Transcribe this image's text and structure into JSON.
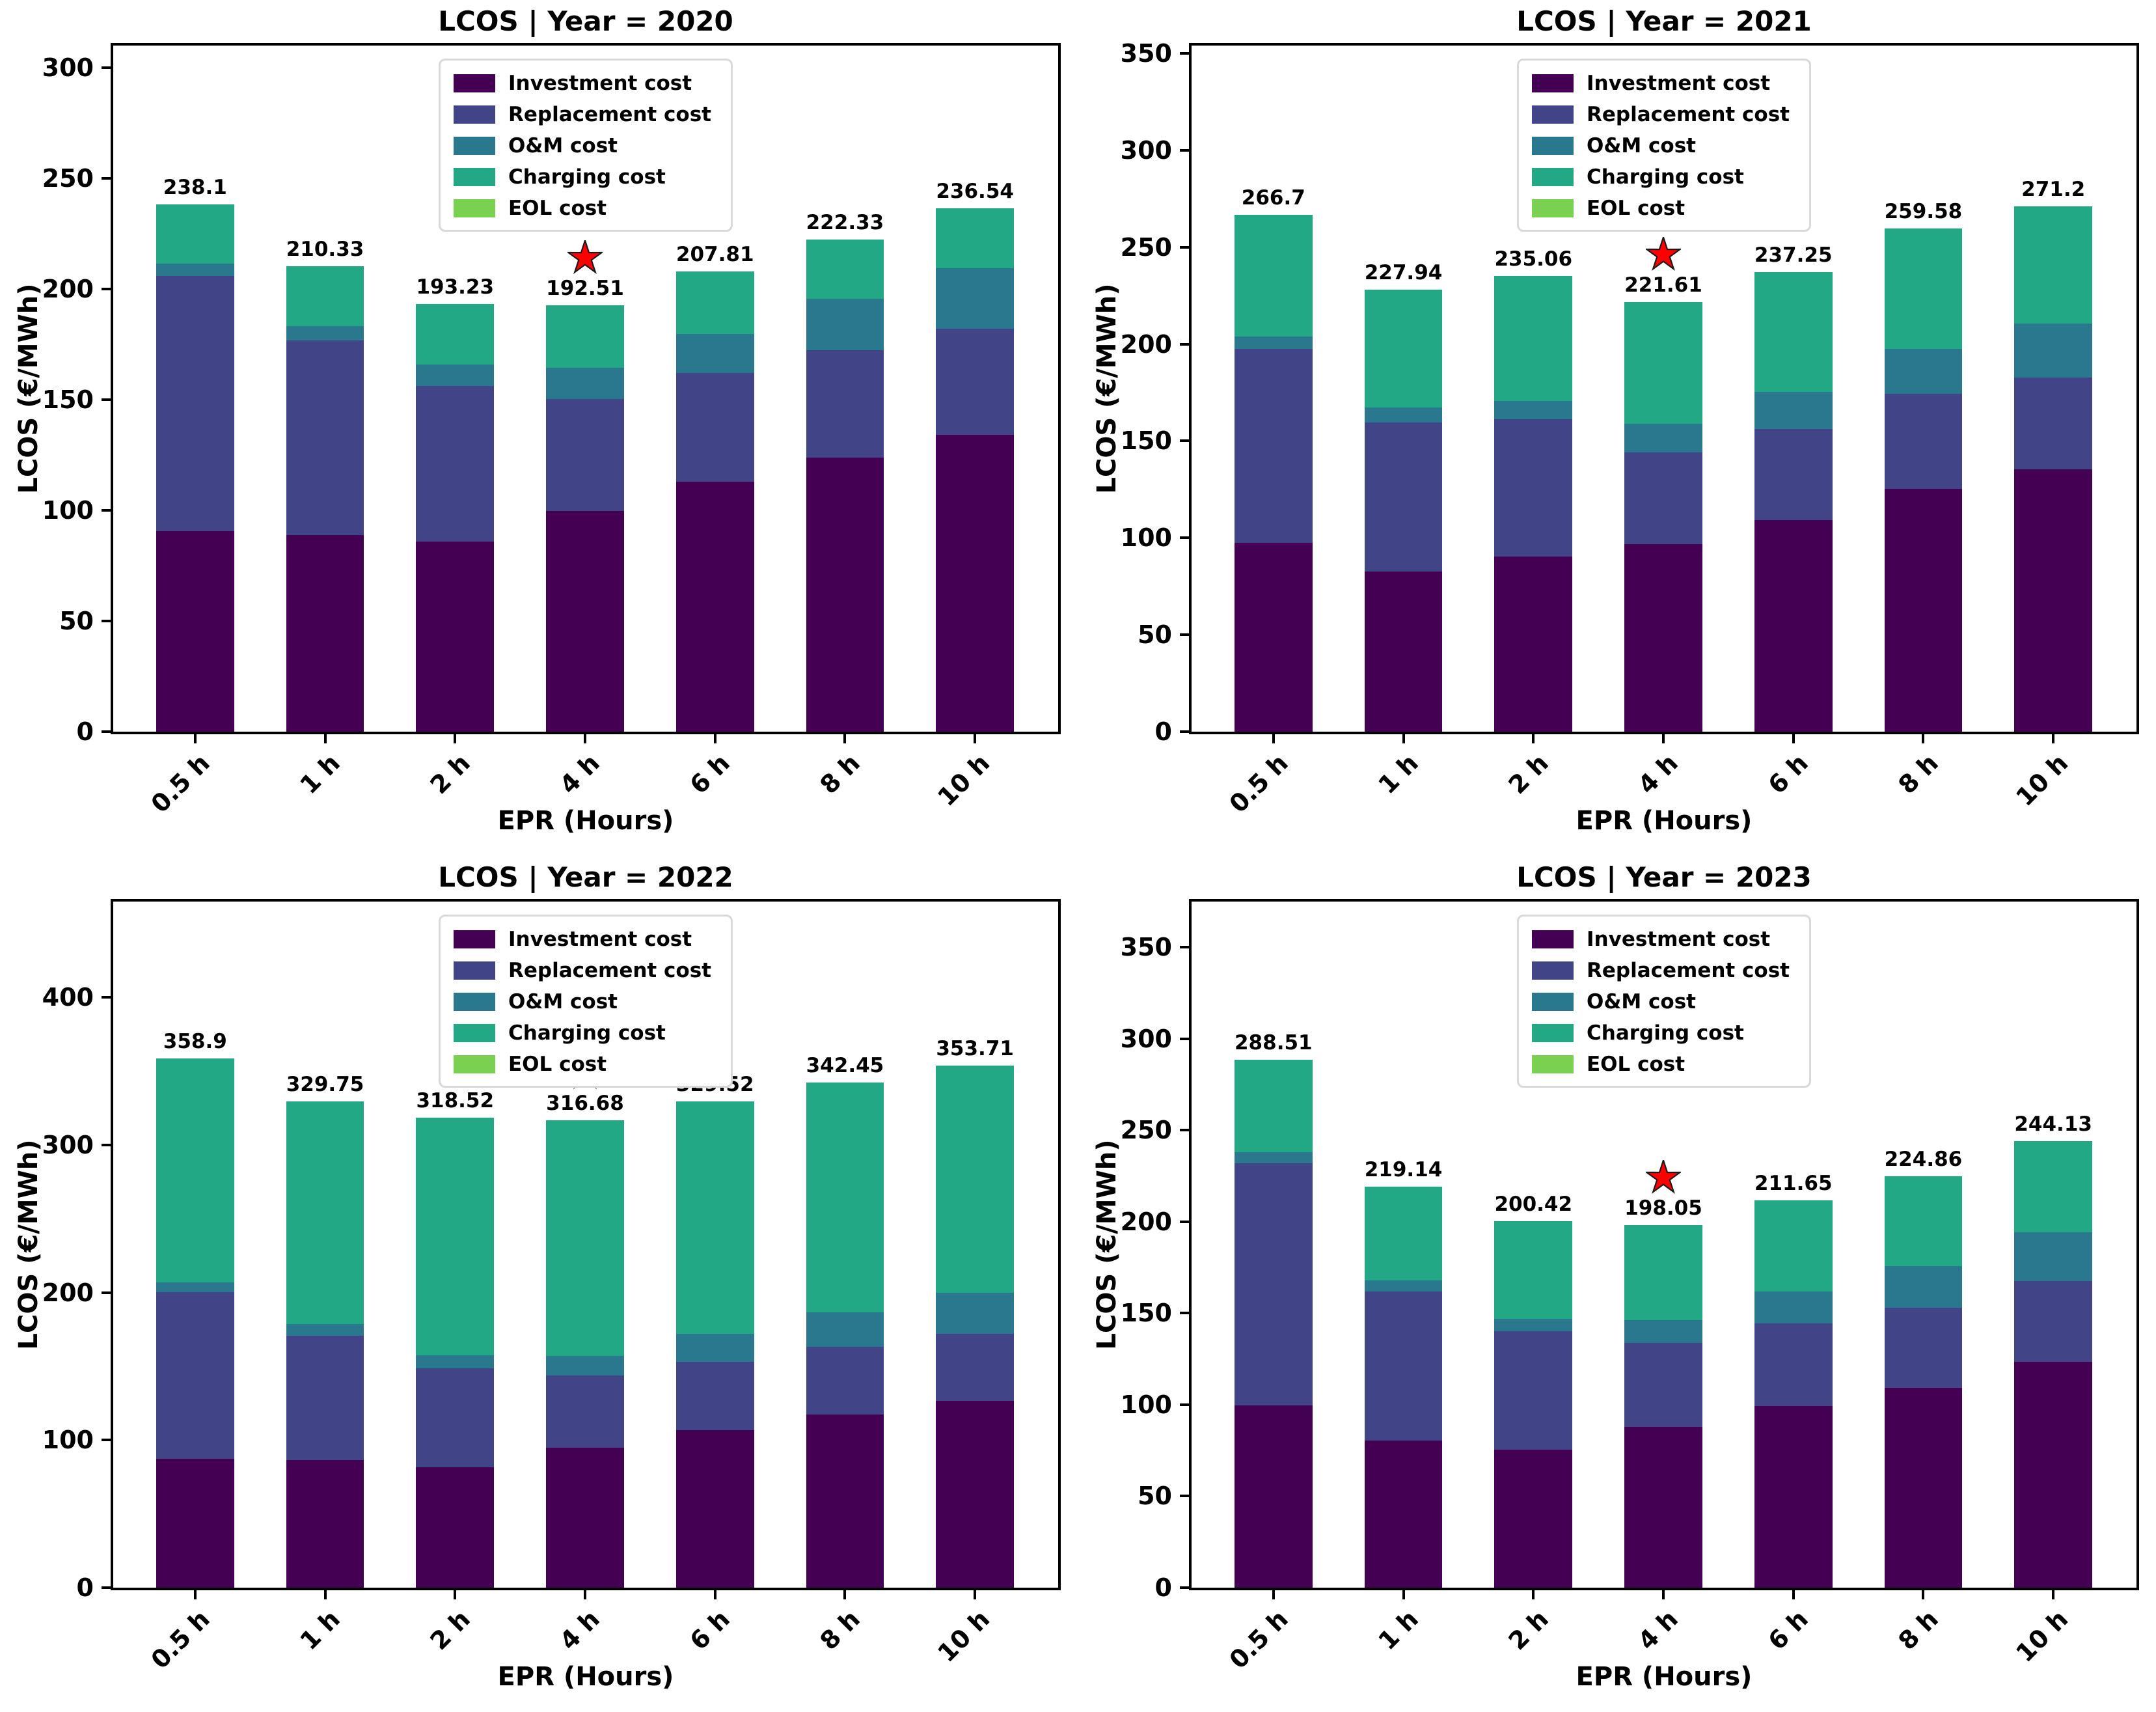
{
  "figure": {
    "background": "#ffffff",
    "star_marker": {
      "fill": "#ff0000",
      "edge": "#1a1a1a"
    },
    "legend_border": "#d9d9d9",
    "axis_color": "#000000"
  },
  "chart_data": [
    {
      "type": "bar",
      "stacked": true,
      "title": "LCOS | Year = 2020",
      "xlabel": "EPR (Hours)",
      "ylabel": "LCOS (€/MWh)",
      "categories": [
        "0.5 h",
        "1 h",
        "2 h",
        "4 h",
        "6 h",
        "8 h",
        "10 h"
      ],
      "yticks": [
        0,
        50,
        100,
        150,
        200,
        250,
        300
      ],
      "ylim": [
        0,
        310
      ],
      "grid": false,
      "legend_position": "upper center",
      "totals": [
        "238.1",
        "210.33",
        "193.23",
        "192.51",
        "207.81",
        "222.33",
        "236.54"
      ],
      "star_index": 3,
      "star_category": "4 h",
      "series": [
        {
          "name": "Investment cost",
          "color": "#440154",
          "values": [
            90.5,
            88.9,
            85.8,
            99.8,
            113.0,
            123.7,
            134.2
          ]
        },
        {
          "name": "Replacement cost",
          "color": "#414487",
          "values": [
            115.3,
            88.0,
            70.5,
            50.5,
            49.0,
            48.7,
            47.9
          ]
        },
        {
          "name": "O&M cost",
          "color": "#2a788e",
          "values": [
            5.7,
            6.2,
            9.5,
            14.2,
            17.6,
            23.1,
            27.4
          ]
        },
        {
          "name": "Charging cost",
          "color": "#22a884",
          "values": [
            26.6,
            27.23,
            27.43,
            28.01,
            28.21,
            26.83,
            27.04
          ]
        },
        {
          "name": "EOL cost",
          "color": "#7ad151",
          "values": [
            0,
            0,
            0,
            0,
            0,
            0,
            0
          ]
        }
      ]
    },
    {
      "type": "bar",
      "stacked": true,
      "title": "LCOS | Year = 2021",
      "xlabel": "EPR (Hours)",
      "ylabel": "LCOS (€/MWh)",
      "categories": [
        "0.5 h",
        "1 h",
        "2 h",
        "4 h",
        "6 h",
        "8 h",
        "10 h"
      ],
      "yticks": [
        0,
        50,
        100,
        150,
        200,
        250,
        300,
        350
      ],
      "ylim": [
        0,
        354
      ],
      "grid": false,
      "legend_position": "upper center",
      "totals": [
        "266.7",
        "227.94",
        "235.06",
        "221.61",
        "237.25",
        "259.58",
        "271.2"
      ],
      "star_index": 3,
      "star_category": "4 h",
      "series": [
        {
          "name": "Investment cost",
          "color": "#440154",
          "values": [
            97.3,
            82.7,
            90.5,
            96.8,
            109.2,
            125.4,
            135.5
          ]
        },
        {
          "name": "Replacement cost",
          "color": "#414487",
          "values": [
            100.1,
            76.7,
            70.8,
            47.4,
            46.9,
            48.8,
            47.3
          ]
        },
        {
          "name": "O&M cost",
          "color": "#2a788e",
          "values": [
            6.5,
            7.7,
            9.4,
            14.7,
            19.2,
            23.2,
            27.7
          ]
        },
        {
          "name": "Charging cost",
          "color": "#22a884",
          "values": [
            62.8,
            60.84,
            64.36,
            62.71,
            61.95,
            62.18,
            60.7
          ]
        },
        {
          "name": "EOL cost",
          "color": "#7ad151",
          "values": [
            0,
            0,
            0,
            0,
            0,
            0,
            0
          ]
        }
      ]
    },
    {
      "type": "bar",
      "stacked": true,
      "title": "LCOS | Year = 2022",
      "xlabel": "EPR (Hours)",
      "ylabel": "LCOS (€/MWh)",
      "categories": [
        "0.5 h",
        "1 h",
        "2 h",
        "4 h",
        "6 h",
        "8 h",
        "10 h"
      ],
      "yticks": [
        0,
        100,
        200,
        300,
        400
      ],
      "ylim": [
        0,
        465
      ],
      "grid": false,
      "legend_position": "upper center",
      "totals": [
        "358.9",
        "329.75",
        "318.52",
        "316.68",
        "329.52",
        "342.45",
        "353.71"
      ],
      "star_index": 3,
      "star_category": "4 h",
      "series": [
        {
          "name": "Investment cost",
          "color": "#440154",
          "values": [
            87.5,
            86.3,
            81.6,
            95.0,
            106.7,
            117.3,
            126.6
          ]
        },
        {
          "name": "Replacement cost",
          "color": "#414487",
          "values": [
            112.7,
            84.3,
            67.3,
            48.7,
            46.6,
            45.9,
            45.3
          ]
        },
        {
          "name": "O&M cost",
          "color": "#2a788e",
          "values": [
            6.8,
            8.1,
            8.7,
            13.3,
            18.6,
            23.3,
            27.9
          ]
        },
        {
          "name": "Charging cost",
          "color": "#22a884",
          "values": [
            151.9,
            151.05,
            160.92,
            159.68,
            157.62,
            155.95,
            153.91
          ]
        },
        {
          "name": "EOL cost",
          "color": "#7ad151",
          "values": [
            0,
            0,
            0,
            0,
            0,
            0,
            0
          ]
        }
      ]
    },
    {
      "type": "bar",
      "stacked": true,
      "title": "LCOS | Year = 2023",
      "xlabel": "EPR (Hours)",
      "ylabel": "LCOS (€/MWh)",
      "categories": [
        "0.5 h",
        "1 h",
        "2 h",
        "4 h",
        "6 h",
        "8 h",
        "10 h"
      ],
      "yticks": [
        0,
        50,
        100,
        150,
        200,
        250,
        300,
        350
      ],
      "ylim": [
        0,
        375
      ],
      "grid": false,
      "legend_position": "upper center",
      "totals": [
        "288.51",
        "219.14",
        "200.42",
        "198.05",
        "211.65",
        "224.86",
        "244.13"
      ],
      "star_index": 3,
      "star_category": "4 h",
      "series": [
        {
          "name": "Investment cost",
          "color": "#440154",
          "values": [
            99.8,
            80.3,
            75.3,
            88.0,
            99.3,
            109.3,
            123.5
          ]
        },
        {
          "name": "Replacement cost",
          "color": "#414487",
          "values": [
            132.2,
            81.5,
            64.8,
            45.8,
            45.0,
            43.8,
            44.0
          ]
        },
        {
          "name": "O&M cost",
          "color": "#2a788e",
          "values": [
            6.0,
            6.3,
            6.8,
            12.5,
            17.5,
            22.5,
            26.8
          ]
        },
        {
          "name": "Charging cost",
          "color": "#22a884",
          "values": [
            50.51,
            51.04,
            53.52,
            51.75,
            49.85,
            49.26,
            49.83
          ]
        },
        {
          "name": "EOL cost",
          "color": "#7ad151",
          "values": [
            0,
            0,
            0,
            0,
            0,
            0,
            0
          ]
        }
      ]
    }
  ]
}
